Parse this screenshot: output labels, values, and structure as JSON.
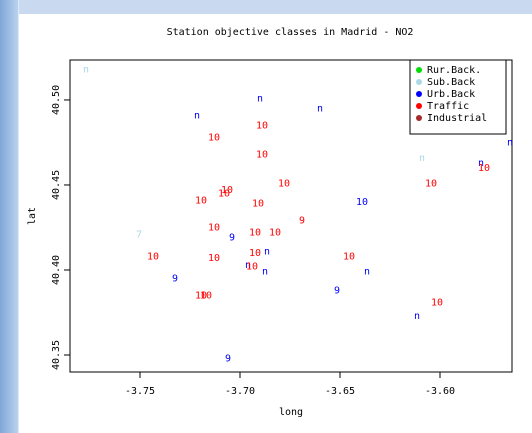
{
  "chart_data": {
    "type": "scatter",
    "title": "Station objective classes in Madrid - NO2",
    "x_label": "long",
    "y_label": "lat",
    "xlim": [
      -3.785,
      -3.564
    ],
    "ylim": [
      40.34,
      40.5235
    ],
    "xticks": [
      -3.75,
      {
        "value": -3.7,
        "label": "-3.70"
      },
      -3.65,
      {
        "value": -3.6,
        "label": "-3.60"
      }
    ],
    "yticks": [
      {
        "value": 40.35,
        "label": "40.35"
      },
      {
        "value": 40.4,
        "label": "40.40"
      },
      40.45,
      {
        "value": 40.5,
        "label": "40.50"
      }
    ],
    "legend": "top-right",
    "series": [
      {
        "name": "Rur.Back.",
        "color": "#00dd00",
        "x": [],
        "y": [],
        "labels": []
      },
      {
        "name": "Sub.Back",
        "color": "#add8e6",
        "x": [
          -3.777,
          -3.7505,
          -3.609
        ],
        "y": [
          40.518,
          40.421,
          40.466
        ],
        "labels": [
          "n",
          "7",
          "n"
        ]
      },
      {
        "name": "Urb.Back",
        "color": "#0000ff",
        "x": [
          -3.7215,
          -3.69,
          -3.66,
          -3.639,
          -3.704,
          -3.6865,
          -3.696,
          -3.6875,
          -3.6365,
          -3.7325,
          -3.6515,
          -3.6115,
          -3.706,
          -3.565,
          -3.5795
        ],
        "y": [
          40.491,
          40.501,
          40.495,
          40.44,
          40.419,
          40.411,
          40.403,
          40.399,
          40.399,
          40.395,
          40.388,
          40.373,
          40.348,
          40.475,
          40.463
        ],
        "labels": [
          "n",
          "n",
          "n",
          "10",
          "9",
          "n",
          "n",
          "n",
          "n",
          "9",
          "9",
          "n",
          "9",
          "n",
          "n"
        ]
      },
      {
        "name": "Traffic",
        "color": "#ff0000",
        "x": [
          -3.713,
          -3.689,
          -3.689,
          -3.678,
          -3.7065,
          -3.708,
          -3.7195,
          -3.691,
          -3.669,
          -3.713,
          -3.6925,
          -3.6825,
          -3.7435,
          -3.713,
          -3.6925,
          -3.6455,
          -3.6045,
          -3.578,
          -3.694,
          -3.7195,
          -3.717,
          -3.6015
        ],
        "y": [
          40.478,
          40.485,
          40.468,
          40.451,
          40.447,
          40.445,
          40.441,
          40.439,
          40.429,
          40.425,
          40.422,
          40.422,
          40.408,
          40.407,
          40.41,
          40.408,
          40.451,
          40.46,
          40.402,
          40.385,
          40.385,
          40.381
        ],
        "labels": [
          "10",
          "10",
          "10",
          "10",
          "10",
          "10",
          "10",
          "10",
          "9",
          "10",
          "10",
          "10",
          "10",
          "10",
          "10",
          "10",
          "10",
          "10",
          "10",
          "10",
          "10",
          "10"
        ]
      },
      {
        "name": "Industrial",
        "color": "#a52a2a",
        "x": [],
        "y": [],
        "labels": []
      }
    ]
  }
}
